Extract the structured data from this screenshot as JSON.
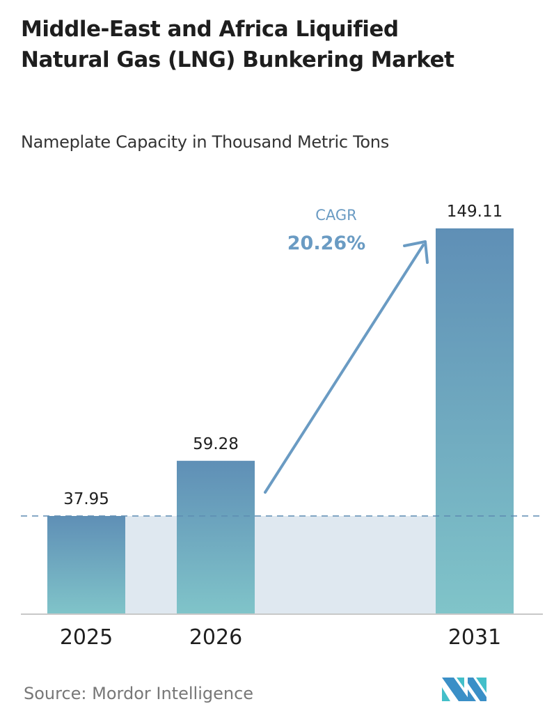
{
  "chart_data": {
    "type": "bar",
    "title": "Middle-East and Africa Liquified Natural Gas (LNG) Bunkering Market",
    "subtitle": "Nameplate Capacity in Thousand Metric Tons",
    "categories": [
      "2025",
      "2026",
      "2031"
    ],
    "values": [
      37.95,
      59.28,
      149.11
    ],
    "value_labels": [
      "37.95",
      "59.28",
      "149.11"
    ],
    "annotation": {
      "label": "CAGR",
      "value": "20.26%"
    },
    "ylim": [
      0,
      150
    ],
    "grid": false,
    "colors": {
      "bar_top": "#5f8fb6",
      "bar_bottom": "#80c4c9",
      "band": "#dfe8f0",
      "accent": "#6a9bc3",
      "dash": "#5d8cb2"
    }
  },
  "footer": {
    "source": "Source:  Mordor Intelligence"
  }
}
